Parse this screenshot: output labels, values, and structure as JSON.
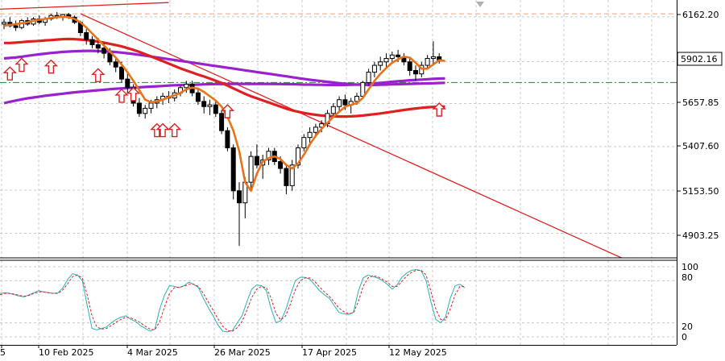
{
  "chart_data": [
    {
      "type": "candlestick",
      "instrument": "",
      "title": "",
      "xlabel": "",
      "ylabel": "",
      "ylim": [
        4760,
        6260
      ],
      "x_tick_labels": [
        "5",
        "10 Feb 2025",
        "4 Mar 2025",
        "26 Mar 2025",
        "17 Apr 2025",
        "12 May 2025"
      ],
      "y_tick_labels": [
        "6162.20",
        "5657.85",
        "5407.60",
        "5153.50",
        "4903.25"
      ],
      "y_ticks": [
        6162.2,
        5657.85,
        5407.6,
        5153.5,
        4903.25
      ],
      "current_price_label": "5902.16",
      "current_price": 5902.16,
      "horizontal_levels": [
        {
          "value": 6180,
          "style": "dashed",
          "color": "#f4a07a"
        },
        {
          "value": 5780,
          "style": "dash-dot",
          "color": "#2e7d32"
        }
      ],
      "candles": [
        [
          6120,
          6150,
          6090,
          6130
        ],
        [
          6130,
          6160,
          6100,
          6110
        ],
        [
          6110,
          6140,
          6080,
          6100
        ],
        [
          6100,
          6150,
          6090,
          6140
        ],
        [
          6140,
          6160,
          6110,
          6120
        ],
        [
          6120,
          6160,
          6110,
          6150
        ],
        [
          6150,
          6170,
          6120,
          6130
        ],
        [
          6130,
          6160,
          6110,
          6150
        ],
        [
          6150,
          6180,
          6140,
          6170
        ],
        [
          6170,
          6190,
          6150,
          6160
        ],
        [
          6160,
          6180,
          6140,
          6175
        ],
        [
          6175,
          6185,
          6150,
          6160
        ],
        [
          6160,
          6170,
          6120,
          6130
        ],
        [
          6130,
          6140,
          6050,
          6070
        ],
        [
          6070,
          6090,
          6000,
          6030
        ],
        [
          6030,
          6050,
          5980,
          6000
        ],
        [
          6000,
          6040,
          5950,
          5980
        ],
        [
          5980,
          6010,
          5920,
          5950
        ],
        [
          5950,
          5980,
          5880,
          5900
        ],
        [
          5900,
          5930,
          5840,
          5870
        ],
        [
          5870,
          5900,
          5780,
          5800
        ],
        [
          5800,
          5830,
          5720,
          5750
        ],
        [
          5750,
          5770,
          5640,
          5660
        ],
        [
          5660,
          5690,
          5580,
          5600
        ],
        [
          5600,
          5650,
          5570,
          5630
        ],
        [
          5630,
          5680,
          5600,
          5660
        ],
        [
          5660,
          5700,
          5630,
          5680
        ],
        [
          5680,
          5720,
          5650,
          5700
        ],
        [
          5700,
          5730,
          5660,
          5690
        ],
        [
          5690,
          5740,
          5670,
          5720
        ],
        [
          5720,
          5760,
          5700,
          5750
        ],
        [
          5750,
          5790,
          5720,
          5770
        ],
        [
          5770,
          5790,
          5700,
          5720
        ],
        [
          5720,
          5740,
          5650,
          5670
        ],
        [
          5670,
          5700,
          5600,
          5640
        ],
        [
          5640,
          5680,
          5590,
          5650
        ],
        [
          5650,
          5670,
          5580,
          5600
        ],
        [
          5600,
          5620,
          5480,
          5500
        ],
        [
          5500,
          5520,
          5380,
          5400
        ],
        [
          5400,
          5420,
          5100,
          5150
        ],
        [
          5150,
          5200,
          4830,
          5080
        ],
        [
          5080,
          5230,
          4990,
          5200
        ],
        [
          5200,
          5380,
          5150,
          5350
        ],
        [
          5350,
          5420,
          5280,
          5300
        ],
        [
          5300,
          5360,
          5220,
          5330
        ],
        [
          5330,
          5400,
          5300,
          5380
        ],
        [
          5380,
          5400,
          5300,
          5320
        ],
        [
          5320,
          5350,
          5250,
          5280
        ],
        [
          5280,
          5300,
          5130,
          5180
        ],
        [
          5180,
          5330,
          5150,
          5300
        ],
        [
          5300,
          5420,
          5280,
          5400
        ],
        [
          5400,
          5480,
          5380,
          5460
        ],
        [
          5460,
          5520,
          5430,
          5490
        ],
        [
          5490,
          5540,
          5460,
          5520
        ],
        [
          5520,
          5560,
          5490,
          5540
        ],
        [
          5540,
          5620,
          5520,
          5600
        ],
        [
          5600,
          5660,
          5580,
          5640
        ],
        [
          5640,
          5700,
          5610,
          5680
        ],
        [
          5680,
          5710,
          5620,
          5650
        ],
        [
          5650,
          5690,
          5600,
          5670
        ],
        [
          5670,
          5720,
          5650,
          5700
        ],
        [
          5700,
          5790,
          5690,
          5780
        ],
        [
          5780,
          5860,
          5760,
          5840
        ],
        [
          5840,
          5900,
          5810,
          5880
        ],
        [
          5880,
          5930,
          5850,
          5900
        ],
        [
          5900,
          5950,
          5870,
          5920
        ],
        [
          5920,
          5960,
          5890,
          5940
        ],
        [
          5940,
          5970,
          5900,
          5930
        ],
        [
          5930,
          5950,
          5880,
          5900
        ],
        [
          5900,
          5920,
          5820,
          5850
        ],
        [
          5850,
          5880,
          5790,
          5830
        ],
        [
          5830,
          5900,
          5810,
          5880
        ],
        [
          5880,
          5940,
          5860,
          5920
        ],
        [
          5920,
          6020,
          5890,
          5930
        ],
        [
          5930,
          5950,
          5890,
          5905
        ]
      ],
      "series": [
        {
          "color": "#e8731a",
          "values": [
            6110,
            6115,
            6120,
            6125,
            6130,
            6140,
            6145,
            6150,
            6155,
            6160,
            6162,
            6160,
            6150,
            6130,
            6100,
            6065,
            6030,
            5995,
            5960,
            5925,
            5885,
            5840,
            5790,
            5735,
            5680,
            5665,
            5670,
            5680,
            5695,
            5705,
            5720,
            5740,
            5750,
            5745,
            5725,
            5700,
            5675,
            5640,
            5580,
            5500,
            5380,
            5200,
            5150,
            5250,
            5320,
            5340,
            5350,
            5335,
            5300,
            5280,
            5310,
            5360,
            5420,
            5470,
            5510,
            5545,
            5580,
            5610,
            5640,
            5650,
            5660,
            5690,
            5740,
            5790,
            5830,
            5865,
            5895,
            5915,
            5930,
            5925,
            5895,
            5860,
            5860,
            5885,
            5910,
            5905
          ]
        },
        {
          "color": "#e02020",
          "values": [
            6010,
            6010,
            6012,
            6015,
            6018,
            6020,
            6022,
            6025,
            6027,
            6030,
            6032,
            6033,
            6032,
            6030,
            6027,
            6023,
            6018,
            6012,
            6005,
            5998,
            5990,
            5980,
            5970,
            5958,
            5945,
            5932,
            5918,
            5904,
            5890,
            5876,
            5862,
            5850,
            5838,
            5826,
            5815,
            5803,
            5790,
            5777,
            5762,
            5746,
            5730,
            5714,
            5700,
            5688,
            5676,
            5664,
            5652,
            5640,
            5628,
            5618,
            5610,
            5603,
            5597,
            5592,
            5588,
            5585,
            5583,
            5582,
            5582,
            5583,
            5585,
            5588,
            5592,
            5596,
            5600,
            5605,
            5610,
            5615,
            5620,
            5625,
            5629,
            5633,
            5636,
            5638,
            5640,
            5640
          ]
        },
        {
          "color": "#9922cc",
          "values": [
            5920,
            5923,
            5926,
            5930,
            5935,
            5940,
            5944,
            5948,
            5952,
            5955,
            5958,
            5960,
            5962,
            5963,
            5964,
            5964,
            5963,
            5962,
            5960,
            5957,
            5954,
            5950,
            5946,
            5941,
            5936,
            5931,
            5926,
            5921,
            5916,
            5911,
            5906,
            5901,
            5896,
            5891,
            5886,
            5881,
            5876,
            5871,
            5866,
            5861,
            5856,
            5851,
            5846,
            5841,
            5836,
            5831,
            5826,
            5821,
            5816,
            5811,
            5806,
            5801,
            5796,
            5792,
            5788,
            5784,
            5780,
            5776,
            5773,
            5770,
            5768,
            5767,
            5766,
            5766,
            5767,
            5768,
            5769,
            5770,
            5771,
            5772,
            5773,
            5774,
            5775,
            5776,
            5777,
            5778
          ]
        },
        {
          "color": "#9922cc",
          "values": [
            5660,
            5668,
            5675,
            5682,
            5688,
            5693,
            5698,
            5703,
            5707,
            5711,
            5715,
            5719,
            5723,
            5726,
            5729,
            5732,
            5735,
            5738,
            5741,
            5744,
            5746,
            5748,
            5750,
            5752,
            5754,
            5756,
            5758,
            5760,
            5762,
            5764,
            5765,
            5766,
            5767,
            5768,
            5769,
            5770,
            5771,
            5771,
            5772,
            5772,
            5772,
            5772,
            5772,
            5772,
            5772,
            5772,
            5771,
            5771,
            5770,
            5770,
            5769,
            5768,
            5768,
            5767,
            5767,
            5766,
            5766,
            5766,
            5766,
            5767,
            5768,
            5770,
            5772,
            5775,
            5778,
            5781,
            5784,
            5787,
            5790,
            5793,
            5795,
            5797,
            5799,
            5801,
            5803,
            5804
          ]
        }
      ],
      "trendlines": [
        {
          "color": "#e02020",
          "from": [
            13,
            6180
          ],
          "to": [
            105,
            4760
          ]
        },
        {
          "color": "#e02020",
          "from": [
            -2,
            6205
          ],
          "to": [
            28,
            6245
          ]
        }
      ],
      "signal_arrows": [
        {
          "i": 1,
          "price": 5870
        },
        {
          "i": 3,
          "price": 5920
        },
        {
          "i": 8,
          "price": 5910
        },
        {
          "i": 16,
          "price": 5860
        },
        {
          "i": 20,
          "price": 5740
        },
        {
          "i": 22,
          "price": 5750
        },
        {
          "i": 26,
          "price": 5540
        },
        {
          "i": 27,
          "price": 5540
        },
        {
          "i": 29,
          "price": 5540
        },
        {
          "i": 38,
          "price": 5650
        },
        {
          "i": 74,
          "price": 5660
        }
      ]
    },
    {
      "type": "line",
      "indicator": "stochastic",
      "ylim": [
        0,
        100
      ],
      "y_tick_labels": [
        "100",
        "80",
        "20",
        "0"
      ],
      "y_ticks": [
        100,
        80,
        20,
        0
      ],
      "series": [
        {
          "color": "#2ab0b8",
          "style": "solid",
          "values": [
            62,
            63,
            62,
            60,
            58,
            57,
            60,
            63,
            66,
            64,
            63,
            62,
            63,
            70,
            82,
            90,
            88,
            80,
            45,
            12,
            10,
            12,
            14,
            20,
            25,
            28,
            30,
            25,
            22,
            16,
            12,
            8,
            11,
            40,
            60,
            73,
            72,
            70,
            73,
            78,
            75,
            70,
            55,
            42,
            30,
            17,
            8,
            7,
            9,
            20,
            30,
            50,
            68,
            74,
            73,
            66,
            40,
            20,
            23,
            38,
            60,
            80,
            85,
            85,
            82,
            74,
            66,
            60,
            55,
            45,
            35,
            33,
            32,
            35,
            65,
            84,
            88,
            86,
            84,
            80,
            75,
            68,
            74,
            85,
            91,
            95,
            96,
            94,
            80,
            50,
            25,
            20,
            28,
            55,
            73,
            75,
            70
          ]
        },
        {
          "color": "#e02020",
          "style": "dashed",
          "values": [
            60,
            62,
            62,
            61,
            59,
            58,
            59,
            62,
            64,
            64,
            63,
            62,
            62,
            67,
            76,
            86,
            88,
            84,
            60,
            30,
            14,
            11,
            12,
            16,
            21,
            25,
            28,
            27,
            24,
            20,
            15,
            11,
            10,
            22,
            43,
            62,
            70,
            71,
            72,
            75,
            75,
            72,
            62,
            50,
            38,
            26,
            15,
            9,
            8,
            13,
            22,
            38,
            56,
            68,
            72,
            70,
            55,
            33,
            24,
            30,
            47,
            67,
            80,
            84,
            84,
            79,
            71,
            64,
            58,
            50,
            41,
            36,
            33,
            34,
            50,
            72,
            84,
            87,
            86,
            82,
            78,
            72,
            72,
            79,
            87,
            92,
            95,
            95,
            88,
            65,
            40,
            25,
            24,
            40,
            60,
            72,
            72
          ]
        }
      ]
    }
  ]
}
